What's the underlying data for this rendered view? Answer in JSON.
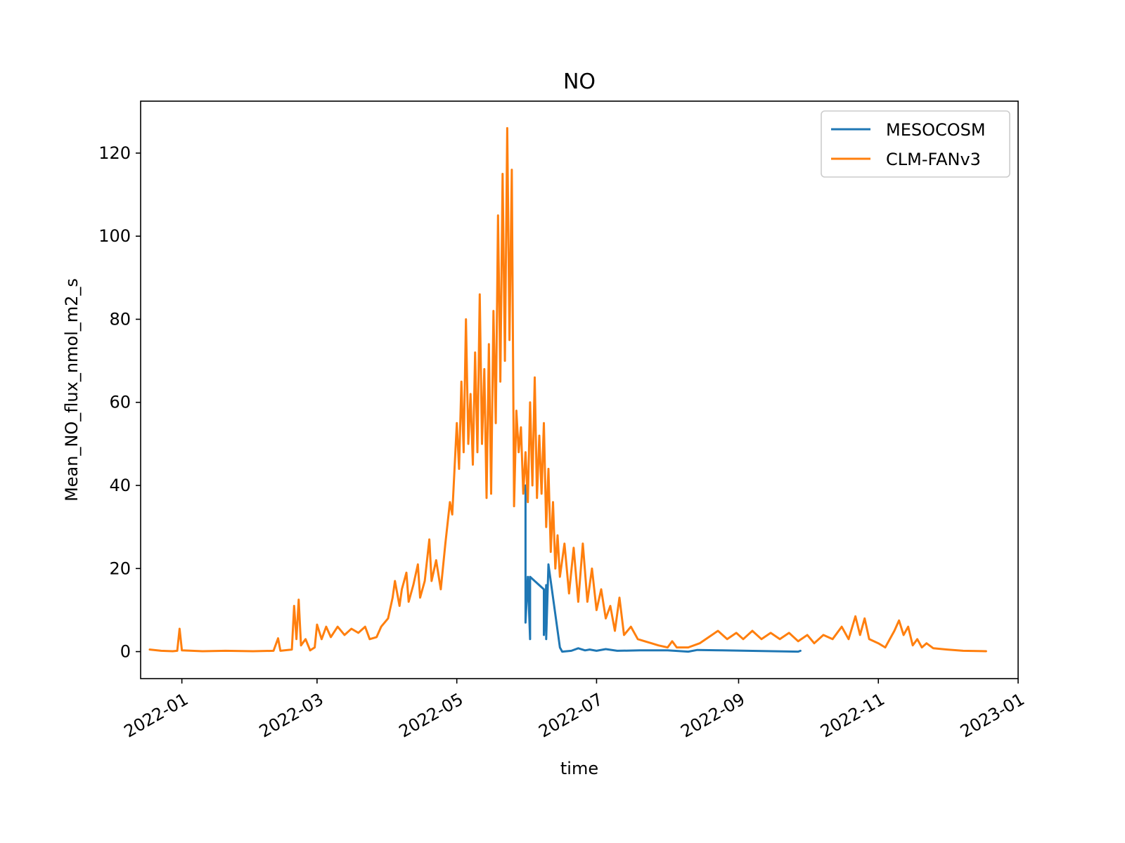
{
  "chart_data": {
    "type": "line",
    "title": "NO",
    "xlabel": "time",
    "ylabel": "Mean_NO_flux_nmol_m2_s",
    "xlim": [
      "2021-12-14",
      "2023-01-01"
    ],
    "ylim": [
      -6.5,
      132.5
    ],
    "x_ticks": [
      "2022-01",
      "2022-03",
      "2022-05",
      "2022-07",
      "2022-09",
      "2022-11",
      "2023-01"
    ],
    "y_ticks": [
      0,
      20,
      40,
      60,
      80,
      100,
      120
    ],
    "grid": false,
    "legend": {
      "position": "top-right",
      "entries": [
        "MESOCOSM",
        "CLM-FANv3"
      ]
    },
    "series": [
      {
        "name": "MESOCOSM",
        "color": "#1f77b4",
        "points": [
          [
            "2022-05-31",
            40
          ],
          [
            "2022-05-31",
            22
          ],
          [
            "2022-05-31",
            7
          ],
          [
            "2022-06-01",
            18
          ],
          [
            "2022-06-02",
            3
          ],
          [
            "2022-06-02",
            18
          ],
          [
            "2022-06-08",
            15
          ],
          [
            "2022-06-08",
            4
          ],
          [
            "2022-06-09",
            16
          ],
          [
            "2022-06-09",
            3
          ],
          [
            "2022-06-10",
            21
          ],
          [
            "2022-06-15",
            1
          ],
          [
            "2022-06-16",
            0
          ],
          [
            "2022-06-20",
            0.2
          ],
          [
            "2022-06-23",
            0.8
          ],
          [
            "2022-06-26",
            0.3
          ],
          [
            "2022-06-28",
            0.5
          ],
          [
            "2022-07-01",
            0.2
          ],
          [
            "2022-07-05",
            0.6
          ],
          [
            "2022-07-10",
            0.2
          ],
          [
            "2022-07-20",
            0.3
          ],
          [
            "2022-08-01",
            0.3
          ],
          [
            "2022-08-10",
            0
          ],
          [
            "2022-08-14",
            0.4
          ],
          [
            "2022-08-25",
            0.3
          ],
          [
            "2022-09-05",
            0.2
          ],
          [
            "2022-09-27",
            0
          ],
          [
            "2022-09-28",
            0.2
          ]
        ]
      },
      {
        "name": "CLM-FANv3",
        "color": "#ff7f0e",
        "points": [
          [
            "2021-12-18",
            0.5
          ],
          [
            "2021-12-23",
            0.2
          ],
          [
            "2021-12-28",
            0.1
          ],
          [
            "2021-12-30",
            0.2
          ],
          [
            "2021-12-31",
            5.5
          ],
          [
            "2022-01-01",
            0.3
          ],
          [
            "2022-01-10",
            0.1
          ],
          [
            "2022-01-20",
            0.2
          ],
          [
            "2022-02-01",
            0.1
          ],
          [
            "2022-02-10",
            0.2
          ],
          [
            "2022-02-12",
            3.2
          ],
          [
            "2022-02-13",
            0.2
          ],
          [
            "2022-02-18",
            0.5
          ],
          [
            "2022-02-19",
            11
          ],
          [
            "2022-02-20",
            3
          ],
          [
            "2022-02-21",
            12.5
          ],
          [
            "2022-02-22",
            1.5
          ],
          [
            "2022-02-24",
            3
          ],
          [
            "2022-02-26",
            0.3
          ],
          [
            "2022-02-28",
            1
          ],
          [
            "2022-03-01",
            6.5
          ],
          [
            "2022-03-03",
            3
          ],
          [
            "2022-03-05",
            6
          ],
          [
            "2022-03-07",
            3.5
          ],
          [
            "2022-03-10",
            6
          ],
          [
            "2022-03-13",
            4
          ],
          [
            "2022-03-16",
            5.5
          ],
          [
            "2022-03-19",
            4.5
          ],
          [
            "2022-03-22",
            6
          ],
          [
            "2022-03-24",
            3
          ],
          [
            "2022-03-27",
            3.5
          ],
          [
            "2022-03-29",
            6
          ],
          [
            "2022-04-01",
            8
          ],
          [
            "2022-04-03",
            13
          ],
          [
            "2022-04-04",
            17
          ],
          [
            "2022-04-06",
            11
          ],
          [
            "2022-04-07",
            15
          ],
          [
            "2022-04-09",
            19
          ],
          [
            "2022-04-10",
            12
          ],
          [
            "2022-04-12",
            16
          ],
          [
            "2022-04-14",
            21
          ],
          [
            "2022-04-15",
            13
          ],
          [
            "2022-04-17",
            17
          ],
          [
            "2022-04-19",
            27
          ],
          [
            "2022-04-20",
            17
          ],
          [
            "2022-04-22",
            22
          ],
          [
            "2022-04-24",
            15
          ],
          [
            "2022-04-26",
            26
          ],
          [
            "2022-04-28",
            36
          ],
          [
            "2022-04-29",
            33
          ],
          [
            "2022-05-01",
            55
          ],
          [
            "2022-05-02",
            44
          ],
          [
            "2022-05-03",
            65
          ],
          [
            "2022-05-04",
            48
          ],
          [
            "2022-05-05",
            80
          ],
          [
            "2022-05-06",
            50
          ],
          [
            "2022-05-07",
            62
          ],
          [
            "2022-05-08",
            45
          ],
          [
            "2022-05-09",
            72
          ],
          [
            "2022-05-10",
            48
          ],
          [
            "2022-05-11",
            86
          ],
          [
            "2022-05-12",
            50
          ],
          [
            "2022-05-13",
            68
          ],
          [
            "2022-05-14",
            37
          ],
          [
            "2022-05-15",
            74
          ],
          [
            "2022-05-16",
            38
          ],
          [
            "2022-05-17",
            82
          ],
          [
            "2022-05-18",
            55
          ],
          [
            "2022-05-19",
            105
          ],
          [
            "2022-05-20",
            65
          ],
          [
            "2022-05-21",
            115
          ],
          [
            "2022-05-22",
            70
          ],
          [
            "2022-05-23",
            126
          ],
          [
            "2022-05-24",
            75
          ],
          [
            "2022-05-25",
            116
          ],
          [
            "2022-05-26",
            35
          ],
          [
            "2022-05-27",
            58
          ],
          [
            "2022-05-28",
            48
          ],
          [
            "2022-05-29",
            54
          ],
          [
            "2022-05-30",
            38
          ],
          [
            "2022-05-31",
            48
          ],
          [
            "2022-06-01",
            36
          ],
          [
            "2022-06-02",
            60
          ],
          [
            "2022-06-03",
            40
          ],
          [
            "2022-06-04",
            66
          ],
          [
            "2022-06-05",
            37
          ],
          [
            "2022-06-06",
            52
          ],
          [
            "2022-06-07",
            38
          ],
          [
            "2022-06-08",
            55
          ],
          [
            "2022-06-09",
            30
          ],
          [
            "2022-06-10",
            44
          ],
          [
            "2022-06-11",
            24
          ],
          [
            "2022-06-12",
            36
          ],
          [
            "2022-06-13",
            20
          ],
          [
            "2022-06-14",
            28
          ],
          [
            "2022-06-15",
            18
          ],
          [
            "2022-06-17",
            26
          ],
          [
            "2022-06-19",
            14
          ],
          [
            "2022-06-21",
            25
          ],
          [
            "2022-06-23",
            12
          ],
          [
            "2022-06-25",
            26
          ],
          [
            "2022-06-27",
            12
          ],
          [
            "2022-06-29",
            20
          ],
          [
            "2022-07-01",
            10
          ],
          [
            "2022-07-03",
            15
          ],
          [
            "2022-07-05",
            8
          ],
          [
            "2022-07-07",
            11
          ],
          [
            "2022-07-09",
            5
          ],
          [
            "2022-07-11",
            13
          ],
          [
            "2022-07-13",
            4
          ],
          [
            "2022-07-16",
            6
          ],
          [
            "2022-07-19",
            3
          ],
          [
            "2022-07-22",
            2.5
          ],
          [
            "2022-07-25",
            2
          ],
          [
            "2022-07-28",
            1.5
          ],
          [
            "2022-08-01",
            1
          ],
          [
            "2022-08-03",
            2.5
          ],
          [
            "2022-08-05",
            1
          ],
          [
            "2022-08-10",
            1
          ],
          [
            "2022-08-15",
            2
          ],
          [
            "2022-08-19",
            3.5
          ],
          [
            "2022-08-23",
            5
          ],
          [
            "2022-08-27",
            3
          ],
          [
            "2022-08-31",
            4.5
          ],
          [
            "2022-09-03",
            3
          ],
          [
            "2022-09-07",
            5
          ],
          [
            "2022-09-11",
            3
          ],
          [
            "2022-09-15",
            4.5
          ],
          [
            "2022-09-19",
            3
          ],
          [
            "2022-09-23",
            4.5
          ],
          [
            "2022-09-27",
            2.5
          ],
          [
            "2022-10-01",
            4
          ],
          [
            "2022-10-04",
            2
          ],
          [
            "2022-10-08",
            4
          ],
          [
            "2022-10-12",
            3
          ],
          [
            "2022-10-16",
            6
          ],
          [
            "2022-10-19",
            3
          ],
          [
            "2022-10-22",
            8.5
          ],
          [
            "2022-10-24",
            4
          ],
          [
            "2022-10-26",
            8
          ],
          [
            "2022-10-28",
            3
          ],
          [
            "2022-11-01",
            2
          ],
          [
            "2022-11-04",
            1
          ],
          [
            "2022-11-08",
            5
          ],
          [
            "2022-11-10",
            7.5
          ],
          [
            "2022-11-12",
            4
          ],
          [
            "2022-11-14",
            6
          ],
          [
            "2022-11-16",
            1.5
          ],
          [
            "2022-11-18",
            3
          ],
          [
            "2022-11-20",
            1
          ],
          [
            "2022-11-22",
            2
          ],
          [
            "2022-11-25",
            0.8
          ],
          [
            "2022-12-01",
            0.5
          ],
          [
            "2022-12-08",
            0.2
          ],
          [
            "2022-12-18",
            0.1
          ]
        ]
      }
    ]
  }
}
